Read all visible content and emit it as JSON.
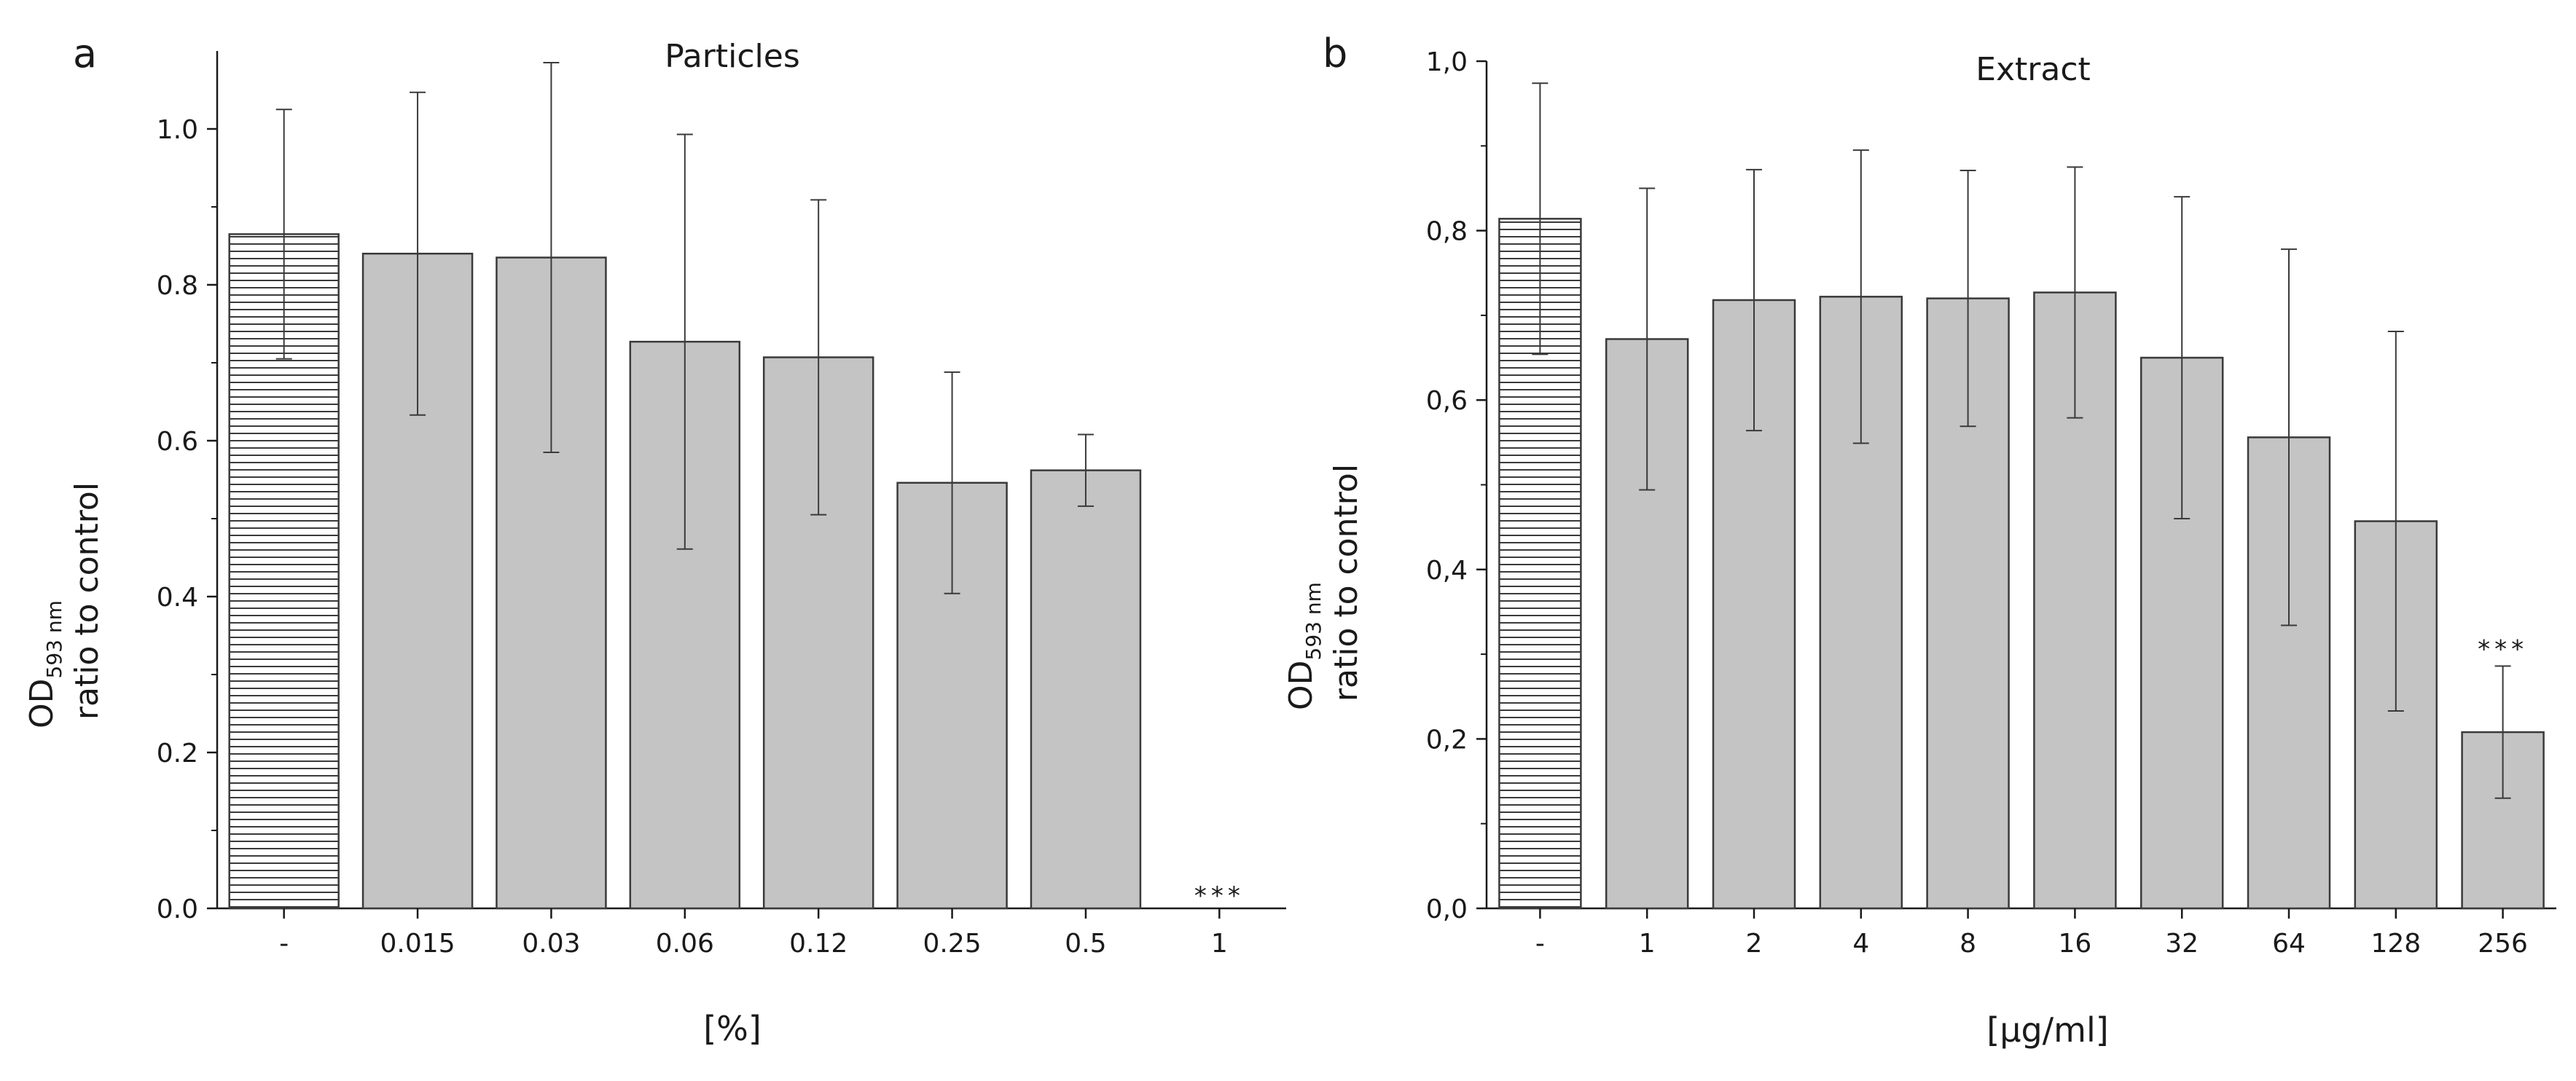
{
  "chart_data": [
    {
      "type": "bar",
      "panel_label": "a",
      "title": "Particles",
      "xlabel": "[%]",
      "ylabel_line1": "OD",
      "ylabel_subscript": "593 nm",
      "ylabel_line2": "ratio to control",
      "ylim": [
        0,
        1.1
      ],
      "yticks": [
        0.0,
        0.2,
        0.4,
        0.6,
        0.8,
        1.0
      ],
      "ytick_labels": [
        "0.0",
        "0.2",
        "0.4",
        "0.6",
        "0.8",
        "1.0"
      ],
      "categories": [
        "-",
        "0.015",
        "0.03",
        "0.06",
        "0.12",
        "0.25",
        "0.5",
        "1"
      ],
      "values": [
        0.865,
        0.84,
        0.835,
        0.727,
        0.707,
        0.546,
        0.562,
        0.0
      ],
      "errors": [
        0.16,
        0.207,
        0.25,
        0.266,
        0.202,
        0.142,
        0.046,
        null
      ],
      "hatched": [
        true,
        false,
        false,
        false,
        false,
        false,
        false,
        false
      ],
      "annotations": [
        {
          "category": "1",
          "text": "***"
        }
      ]
    },
    {
      "type": "bar",
      "panel_label": "b",
      "title": "Extract",
      "xlabel": "[µg/ml]",
      "ylabel_line1": "OD",
      "ylabel_subscript": "593 nm",
      "ylabel_line2": "ratio to control",
      "ylim": [
        0,
        1.0
      ],
      "yticks": [
        0.0,
        0.2,
        0.4,
        0.6,
        0.8,
        1.0
      ],
      "ytick_labels": [
        "0,0",
        "0,2",
        "0,4",
        "0,6",
        "0,8",
        "1,0"
      ],
      "categories": [
        "-",
        "1",
        "2",
        "4",
        "8",
        "16",
        "32",
        "64",
        "128",
        "256"
      ],
      "values": [
        0.814,
        0.672,
        0.718,
        0.722,
        0.72,
        0.727,
        0.65,
        0.556,
        0.457,
        0.208
      ],
      "errors": [
        0.16,
        0.178,
        0.154,
        0.173,
        0.151,
        0.148,
        0.19,
        0.222,
        0.224,
        0.078
      ],
      "hatched": [
        true,
        false,
        false,
        false,
        false,
        false,
        false,
        false,
        false,
        false
      ],
      "annotations": [
        {
          "category": "256",
          "text": "***"
        }
      ]
    }
  ],
  "colors": {
    "bar_fill": "#c4c4c4",
    "bar_stroke": "#3a3a3a",
    "hatch_line": "#3a3a3a",
    "axis": "#1a1a1a"
  }
}
